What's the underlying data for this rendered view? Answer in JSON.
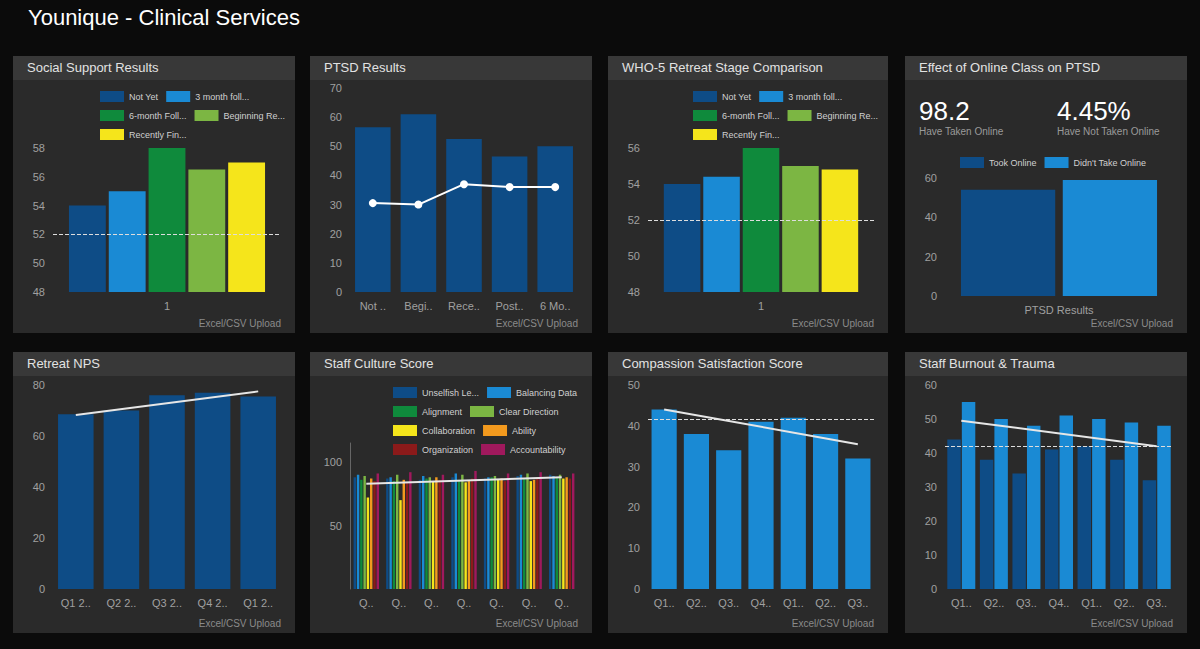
{
  "header": {
    "title": "Younique - Clinical Services"
  },
  "chart_data": [
    {
      "type": "bar",
      "title": "Social Support Results",
      "footer": "Excel/CSV Upload",
      "categories": [
        "1"
      ],
      "series": [
        {
          "name": "Not Yet",
          "color": "#0e4c86",
          "values": [
            54
          ]
        },
        {
          "name": "3 month foll...",
          "color": "#1a8ad4",
          "values": [
            55
          ]
        },
        {
          "name": "6-month Foll...",
          "color": "#0f8a3c",
          "values": [
            58
          ]
        },
        {
          "name": "Beginning Re...",
          "color": "#7cb643",
          "values": [
            56.5
          ]
        },
        {
          "name": "Recently Fin...",
          "color": "#f5e51b",
          "values": [
            57
          ]
        }
      ],
      "reference_line": 52,
      "ylim": [
        48,
        58
      ],
      "yticks": [
        48,
        50,
        52,
        54,
        56,
        58
      ],
      "legend": "top",
      "grid": false
    },
    {
      "type": "bar",
      "title": "PTSD Results",
      "footer": "Excel/CSV Upload",
      "categories": [
        "Not ..",
        "Begi..",
        "Rece..",
        "Post..",
        "6 Mo.."
      ],
      "series": [
        {
          "type": "bar",
          "color": "#0e4c86",
          "values": [
            56.5,
            61,
            52.5,
            46.5,
            50
          ]
        },
        {
          "type": "line",
          "color": "#ffffff",
          "marker": "circle",
          "values": [
            30.5,
            30,
            37,
            36,
            36
          ]
        }
      ],
      "ylim": [
        0,
        70
      ],
      "yticks": [
        0,
        10,
        20,
        30,
        40,
        50,
        60,
        70
      ],
      "grid": false
    },
    {
      "type": "bar",
      "title": "WHO-5 Retreat Stage Comparison",
      "footer": "Excel/CSV Upload",
      "categories": [
        "1"
      ],
      "series": [
        {
          "name": "Not Yet",
          "color": "#0e4c86",
          "values": [
            54
          ]
        },
        {
          "name": "3 month foll...",
          "color": "#1a8ad4",
          "values": [
            54.4
          ]
        },
        {
          "name": "6-month Foll...",
          "color": "#0f8a3c",
          "values": [
            56
          ]
        },
        {
          "name": "Beginning Re...",
          "color": "#7cb643",
          "values": [
            55
          ]
        },
        {
          "name": "Recently Fin...",
          "color": "#f5e51b",
          "values": [
            54.8
          ]
        }
      ],
      "reference_line": 52,
      "ylim": [
        48,
        56
      ],
      "yticks": [
        48,
        50,
        52,
        54,
        56
      ],
      "legend": "top",
      "grid": false
    },
    {
      "type": "bar",
      "title": "Effect of Online Class on PTSD",
      "footer": "Excel/CSV Upload",
      "kpis": {
        "values": [
          98.2,
          4.45
        ],
        "value_labels": [
          "98.2",
          "4.45%"
        ],
        "labels": [
          "Have Taken Online",
          "Have Not Taken Online"
        ]
      },
      "categories": [
        "PTSD Results"
      ],
      "series": [
        {
          "name": "Took Online",
          "color": "#0e4c86",
          "values": [
            54
          ]
        },
        {
          "name": "Didn't Take Online",
          "color": "#1a8ad4",
          "values": [
            59
          ]
        }
      ],
      "ylim": [
        0,
        60
      ],
      "yticks": [
        0,
        20,
        40,
        60
      ],
      "legend": "top",
      "grid": false
    },
    {
      "type": "bar",
      "title": "Retreat NPS",
      "footer": "Excel/CSV Upload",
      "categories": [
        "Q1 2..",
        "Q2 2..",
        "Q3 2..",
        "Q4 2..",
        "Q1 2.."
      ],
      "series": [
        {
          "type": "bar",
          "color": "#0e4c86",
          "values": [
            68.5,
            70,
            76,
            77,
            75.5
          ]
        },
        {
          "type": "line",
          "color": "#e6e6e6",
          "line_style": "trend",
          "values": [
            68.2,
            null,
            null,
            null,
            77.5
          ]
        }
      ],
      "ylim": [
        0,
        80
      ],
      "yticks": [
        0,
        20,
        40,
        60,
        80
      ],
      "grid": false
    },
    {
      "type": "bar",
      "title": "Staff Culture Score",
      "footer": "Excel/CSV Upload",
      "categories": [
        "Q..",
        "Q..",
        "Q..",
        "Q..",
        "Q..",
        "Q..",
        "Q.."
      ],
      "series": [
        {
          "name": "Unselfish Le...",
          "color": "#0e4c86",
          "values": [
            88,
            87,
            86,
            88,
            87,
            89,
            90
          ]
        },
        {
          "name": "Balancing Data",
          "color": "#1a8ad4",
          "values": [
            90,
            88,
            89,
            91,
            88,
            90,
            89
          ]
        },
        {
          "name": "Alignment",
          "color": "#0f8a3c",
          "values": [
            86,
            85,
            87,
            86,
            88,
            87,
            88
          ]
        },
        {
          "name": "Clear Direction",
          "color": "#7cb643",
          "values": [
            89,
            90,
            88,
            90,
            89,
            91,
            90
          ]
        },
        {
          "name": "Collaboration",
          "color": "#f5e51b",
          "values": [
            72,
            70,
            85,
            84,
            86,
            85,
            87
          ]
        },
        {
          "name": "Ability",
          "color": "#f39a1e",
          "values": [
            87,
            86,
            88,
            85,
            87,
            86,
            88
          ]
        },
        {
          "name": "Organization",
          "color": "#8b1a1a",
          "values": [
            85,
            84,
            86,
            87,
            85,
            88,
            87
          ]
        },
        {
          "name": "Accountability",
          "color": "#a0195d",
          "values": [
            91,
            92,
            90,
            93,
            91,
            92,
            91
          ]
        },
        {
          "type": "line",
          "color": "#e6e6e6",
          "line_style": "trend",
          "values": [
            83,
            null,
            null,
            null,
            null,
            null,
            88
          ]
        }
      ],
      "ylim": [
        0,
        115
      ],
      "yticks": [
        50,
        100
      ],
      "legend": "top",
      "grid": false
    },
    {
      "type": "bar",
      "title": "Compassion Satisfaction Score",
      "footer": "Excel/CSV Upload",
      "categories": [
        "Q1..",
        "Q2..",
        "Q3..",
        "Q4..",
        "Q1..",
        "Q2..",
        "Q3.."
      ],
      "series": [
        {
          "type": "bar",
          "color": "#1a8ad4",
          "values": [
            44,
            38,
            34,
            41,
            42,
            38,
            32
          ]
        },
        {
          "type": "line",
          "color": "#e6e6e6",
          "line_style": "trend",
          "values": [
            44,
            null,
            null,
            null,
            null,
            null,
            35.5
          ]
        }
      ],
      "reference_line": 41.5,
      "ylim": [
        0,
        50
      ],
      "yticks": [
        0,
        10,
        20,
        30,
        40,
        50
      ],
      "grid": false
    },
    {
      "type": "bar",
      "title": "Staff Burnout & Trauma",
      "footer": "Excel/CSV Upload",
      "categories": [
        "Q1..",
        "Q2..",
        "Q3..",
        "Q4..",
        "Q1..",
        "Q2..",
        "Q3.."
      ],
      "series": [
        {
          "type": "bar",
          "color": "#0e4c86",
          "values": [
            44,
            38,
            34,
            41,
            42,
            38,
            32
          ]
        },
        {
          "type": "bar",
          "color": "#1a8ad4",
          "values": [
            55,
            50,
            48,
            51,
            50,
            49,
            48
          ]
        },
        {
          "type": "line",
          "color": "#e6e6e6",
          "line_style": "trend",
          "values": [
            49.5,
            null,
            null,
            null,
            null,
            null,
            42
          ]
        }
      ],
      "reference_line": 42,
      "ylim": [
        0,
        60
      ],
      "yticks": [
        0,
        10,
        20,
        30,
        40,
        50,
        60
      ],
      "grid": false
    }
  ]
}
